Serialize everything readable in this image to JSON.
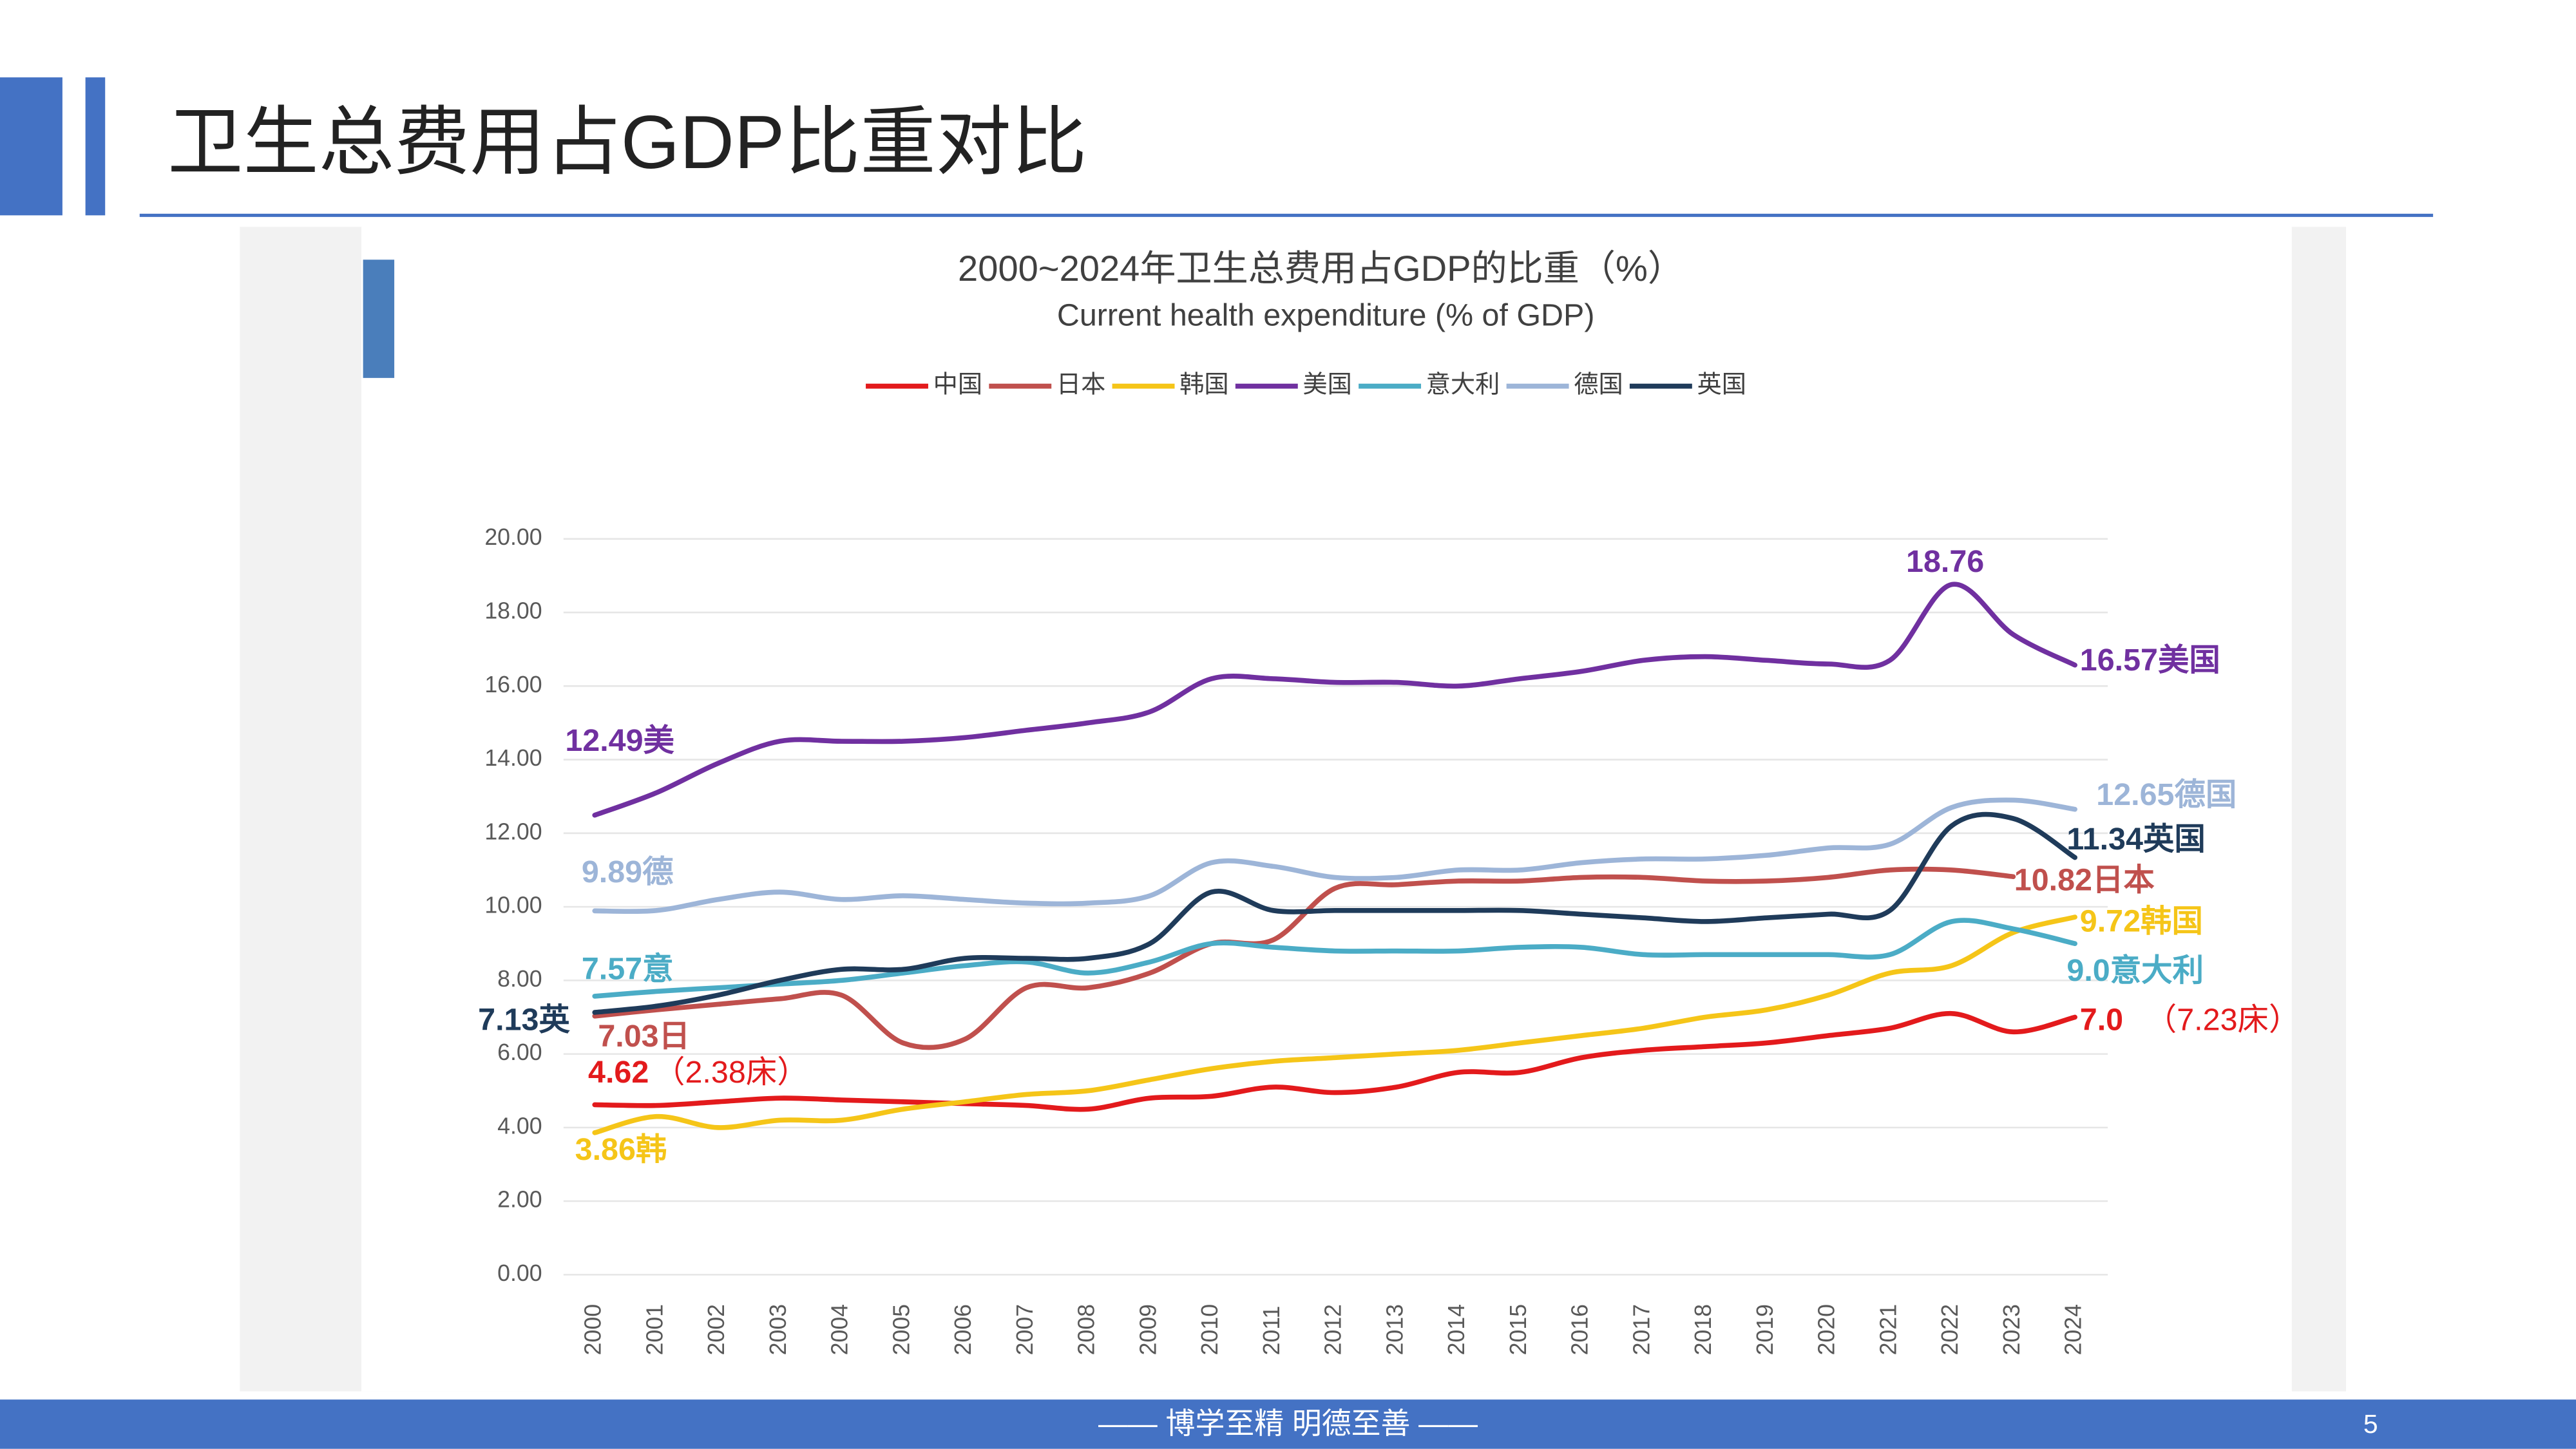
{
  "page": {
    "title": "卫生总费用占GDP比重对比",
    "footer": "—— 博学至精  明德至善 ——",
    "page_number": "5"
  },
  "chart_data": {
    "type": "line",
    "title": "2000~2024年卫生总费用占GDP的比重（%）",
    "subtitle": "Current health expenditure (% of GDP)",
    "categories": [
      "2000",
      "2001",
      "2002",
      "2003",
      "2004",
      "2005",
      "2006",
      "2007",
      "2008",
      "2009",
      "2010",
      "2011",
      "2012",
      "2013",
      "2014",
      "2015",
      "2016",
      "2017",
      "2018",
      "2019",
      "2020",
      "2021",
      "2022",
      "2023",
      "2024"
    ],
    "ylim": [
      0,
      20
    ],
    "yticks": [
      {
        "value": 0,
        "label": "0.00"
      },
      {
        "value": 2,
        "label": "2.00"
      },
      {
        "value": 4,
        "label": "4.00"
      },
      {
        "value": 6,
        "label": "6.00"
      },
      {
        "value": 8,
        "label": "8.00"
      },
      {
        "value": 10,
        "label": "10.00"
      },
      {
        "value": 12,
        "label": "12.00"
      },
      {
        "value": 14,
        "label": "14.00"
      },
      {
        "value": 16,
        "label": "16.00"
      },
      {
        "value": 18,
        "label": "18.00"
      },
      {
        "value": 20,
        "label": "20.00"
      }
    ],
    "grid": true,
    "series": [
      {
        "name": "中国",
        "color": "#e31a1c",
        "values": [
          4.62,
          4.6,
          4.7,
          4.8,
          4.75,
          4.7,
          4.65,
          4.6,
          4.5,
          4.8,
          4.85,
          5.1,
          4.95,
          5.1,
          5.5,
          5.5,
          5.9,
          6.1,
          6.2,
          6.3,
          6.5,
          6.7,
          7.1,
          6.6,
          7.0
        ]
      },
      {
        "name": "日本",
        "color": "#c0504d",
        "values": [
          7.03,
          7.2,
          7.35,
          7.5,
          7.6,
          6.3,
          6.4,
          7.8,
          7.8,
          8.2,
          9.0,
          9.1,
          10.5,
          10.6,
          10.7,
          10.7,
          10.8,
          10.8,
          10.7,
          10.7,
          10.8,
          11.0,
          11.0,
          10.82,
          null
        ]
      },
      {
        "name": "韩国",
        "color": "#f5c518",
        "values": [
          3.86,
          4.3,
          4.0,
          4.2,
          4.2,
          4.5,
          4.7,
          4.9,
          5.0,
          5.3,
          5.6,
          5.8,
          5.9,
          6.0,
          6.1,
          6.3,
          6.5,
          6.7,
          7.0,
          7.2,
          7.6,
          8.2,
          8.4,
          9.3,
          9.72
        ]
      },
      {
        "name": "美国",
        "color": "#7030a0",
        "values": [
          12.49,
          13.1,
          13.9,
          14.5,
          14.5,
          14.5,
          14.6,
          14.8,
          15.0,
          15.3,
          16.2,
          16.2,
          16.1,
          16.1,
          16.0,
          16.2,
          16.4,
          16.7,
          16.8,
          16.7,
          16.6,
          16.7,
          18.76,
          17.4,
          16.57
        ]
      },
      {
        "name": "意大利",
        "color": "#4bacc6",
        "values": [
          7.57,
          7.7,
          7.8,
          7.9,
          8.0,
          8.2,
          8.4,
          8.5,
          8.2,
          8.5,
          9.0,
          8.9,
          8.8,
          8.8,
          8.8,
          8.9,
          8.9,
          8.7,
          8.7,
          8.7,
          8.7,
          8.7,
          9.6,
          9.4,
          9.0
        ]
      },
      {
        "name": "德国",
        "color": "#9db5d8",
        "values": [
          9.89,
          9.9,
          10.2,
          10.4,
          10.2,
          10.3,
          10.2,
          10.1,
          10.1,
          10.3,
          11.2,
          11.1,
          10.8,
          10.8,
          11.0,
          11.0,
          11.2,
          11.3,
          11.3,
          11.4,
          11.6,
          11.7,
          12.7,
          12.9,
          12.65
        ]
      },
      {
        "name": "英国",
        "color": "#1f3b5a",
        "values": [
          7.13,
          7.3,
          7.6,
          8.0,
          8.3,
          8.3,
          8.6,
          8.6,
          8.6,
          9.0,
          10.4,
          9.9,
          9.9,
          9.9,
          9.9,
          9.9,
          9.8,
          9.7,
          9.6,
          9.7,
          9.8,
          9.9,
          12.2,
          12.4,
          11.34
        ]
      }
    ],
    "annotations": [
      "18.76",
      "16.57美国",
      "12.49美",
      "12.65德国",
      "11.34英国",
      "9.89德",
      "10.82日本",
      "9.72韩国",
      "7.57意",
      "9.0意大利",
      "7.13英",
      "7.03日",
      "7.0",
      "（7.23床）",
      "4.62",
      "（2.38床）",
      "3.86韩"
    ]
  }
}
